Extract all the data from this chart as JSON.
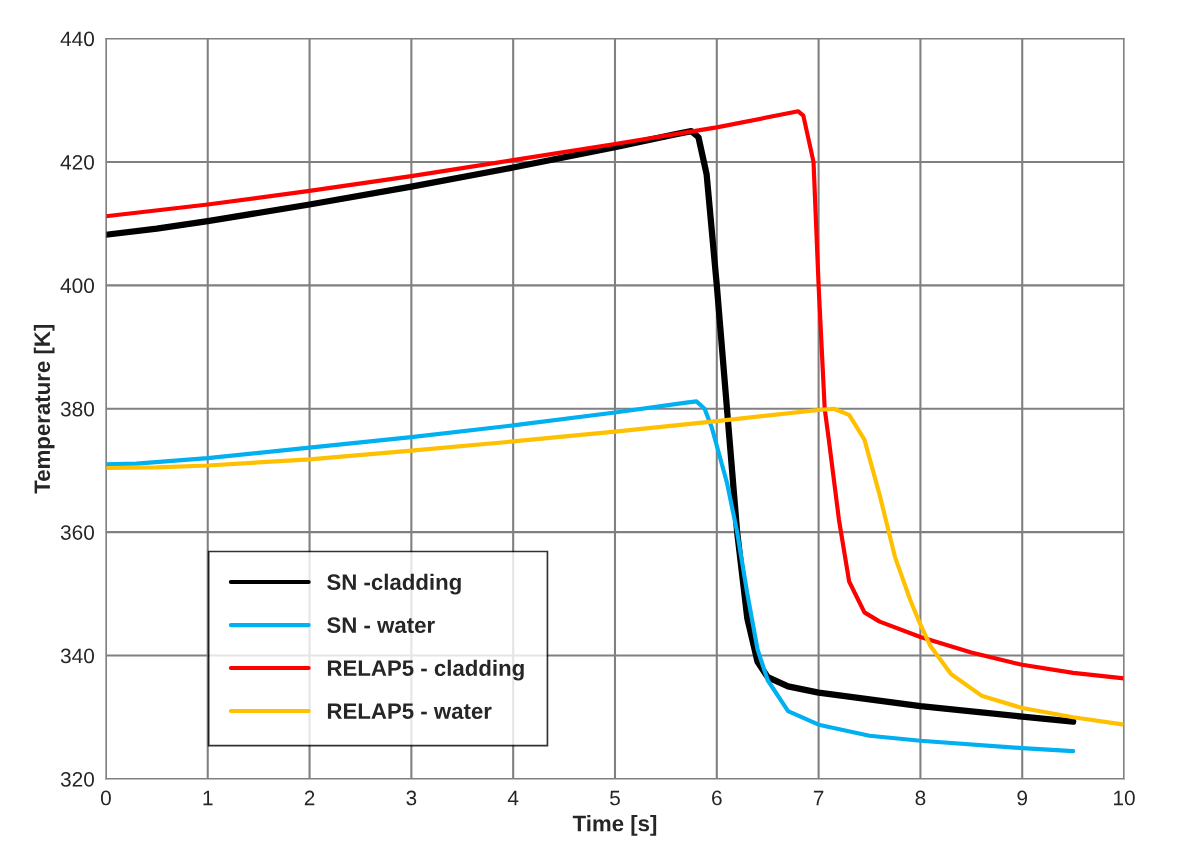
{
  "chart_data": {
    "type": "line",
    "xlabel": "Time [s]",
    "ylabel": "Temperature [K]",
    "xlim": [
      0,
      10
    ],
    "ylim": [
      320,
      440
    ],
    "xticks": [
      0,
      1,
      2,
      3,
      4,
      5,
      6,
      7,
      8,
      9,
      10
    ],
    "yticks": [
      320,
      340,
      360,
      380,
      400,
      420,
      440
    ],
    "grid": true,
    "legend": "bottom left",
    "marker": "none",
    "line_style": "solid",
    "series": [
      {
        "name": "SN -cladding",
        "color": "#000000",
        "x": [
          0,
          0.5,
          1,
          2,
          3,
          4,
          5,
          5.6,
          5.75,
          5.82,
          5.9,
          6.0,
          6.1,
          6.2,
          6.3,
          6.4,
          6.5,
          6.7,
          7,
          8,
          9,
          9.5
        ],
        "values": [
          408.2,
          409.2,
          410.4,
          413.1,
          416,
          419.1,
          422.4,
          424.5,
          425,
          424,
          418,
          400,
          380,
          360,
          346,
          339,
          336.5,
          335,
          334,
          331.8,
          330.1,
          329.3
        ]
      },
      {
        "name": "SN - water",
        "color": "#00b0f0",
        "x": [
          0,
          0.3,
          1,
          2,
          3,
          4,
          5,
          5.7,
          5.8,
          5.88,
          5.95,
          6.1,
          6.2,
          6.3,
          6.4,
          6.5,
          6.7,
          7,
          7.5,
          8,
          9,
          9.5
        ],
        "values": [
          371,
          371.1,
          372,
          373.7,
          375.4,
          377.3,
          379.4,
          381,
          381.2,
          380,
          377,
          368,
          360,
          350,
          341,
          336,
          331,
          328.8,
          327,
          326.2,
          325,
          324.5
        ]
      },
      {
        "name": "RELAP5 - cladding",
        "color": "#ff0000",
        "x": [
          0,
          1,
          2,
          3,
          4,
          5,
          6,
          6.8,
          6.85,
          6.95,
          7.0,
          7.06,
          7.1,
          7.2,
          7.3,
          7.45,
          7.6,
          8,
          8.5,
          9,
          9.5,
          10
        ],
        "values": [
          411.2,
          413.1,
          415.3,
          417.7,
          420.3,
          422.9,
          425.6,
          428.2,
          427.5,
          420,
          400,
          380,
          375,
          362,
          352,
          347,
          345.5,
          343,
          340.5,
          338.5,
          337.2,
          336.3
        ]
      },
      {
        "name": "RELAP5 - water",
        "color": "#ffc000",
        "x": [
          0,
          0.5,
          1,
          2,
          3,
          4,
          5,
          6,
          7,
          7.15,
          7.3,
          7.45,
          7.6,
          7.75,
          7.9,
          8.0,
          8.1,
          8.3,
          8.6,
          9,
          9.5,
          10
        ],
        "values": [
          370.4,
          370.5,
          370.8,
          371.8,
          373.2,
          374.7,
          376.3,
          378,
          379.8,
          380,
          379,
          375,
          366,
          356,
          349,
          345,
          341.5,
          337,
          333.5,
          331.5,
          330,
          328.8
        ]
      }
    ]
  }
}
